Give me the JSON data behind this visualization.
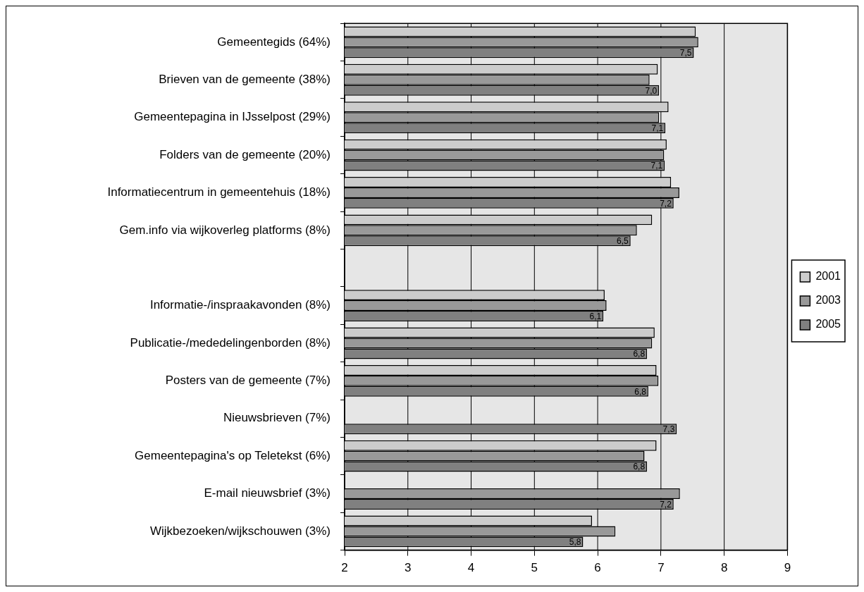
{
  "chart_data": {
    "type": "bar",
    "orientation": "horizontal",
    "categories": [
      "Gemeentegids (64%)",
      "Brieven van de gemeente (38%)",
      "Gemeentepagina in IJsselpost (29%)",
      "Folders van de gemeente (20%)",
      "Informatiecentrum in gemeentehuis (18%)",
      "Gem.info via wijkoverleg platforms (8%)",
      null,
      "Informatie-/inspraakavonden (8%)",
      "Publicatie-/mededelingenborden (8%)",
      "Posters van de gemeente (7%)",
      "Nieuwsbrieven (7%)",
      "Gemeentepagina's op Teletekst (6%)",
      "E-mail nieuwsbrief (3%)",
      "Wijkbezoeken/wijkschouwen (3%)"
    ],
    "series": [
      {
        "name": "2001",
        "color": "#cccccc",
        "values": [
          7.55,
          6.95,
          7.12,
          7.09,
          7.16,
          6.86,
          null,
          6.11,
          6.9,
          6.93,
          null,
          6.93,
          null,
          5.91
        ]
      },
      {
        "name": "2003",
        "color": "#999999",
        "values": [
          7.59,
          6.82,
          6.97,
          7.05,
          7.29,
          6.62,
          null,
          6.14,
          6.86,
          6.96,
          null,
          6.74,
          7.3,
          6.28
        ]
      },
      {
        "name": "2005",
        "color": "#808080",
        "values": [
          7.52,
          6.97,
          7.07,
          7.06,
          7.2,
          6.52,
          null,
          6.09,
          6.78,
          6.8,
          7.25,
          6.78,
          7.2,
          5.77
        ],
        "value_labels": [
          "7,5",
          "7,0",
          "7,1",
          "7,1",
          "7,2",
          "6,5",
          null,
          "6,1",
          "6,8",
          "6,8",
          "7,3",
          "6,8",
          "7,2",
          "5,8"
        ]
      }
    ],
    "xlim": [
      2,
      9
    ],
    "xticks": [
      2,
      3,
      4,
      5,
      6,
      7,
      8,
      9
    ],
    "grid": "x",
    "legend": "right"
  }
}
